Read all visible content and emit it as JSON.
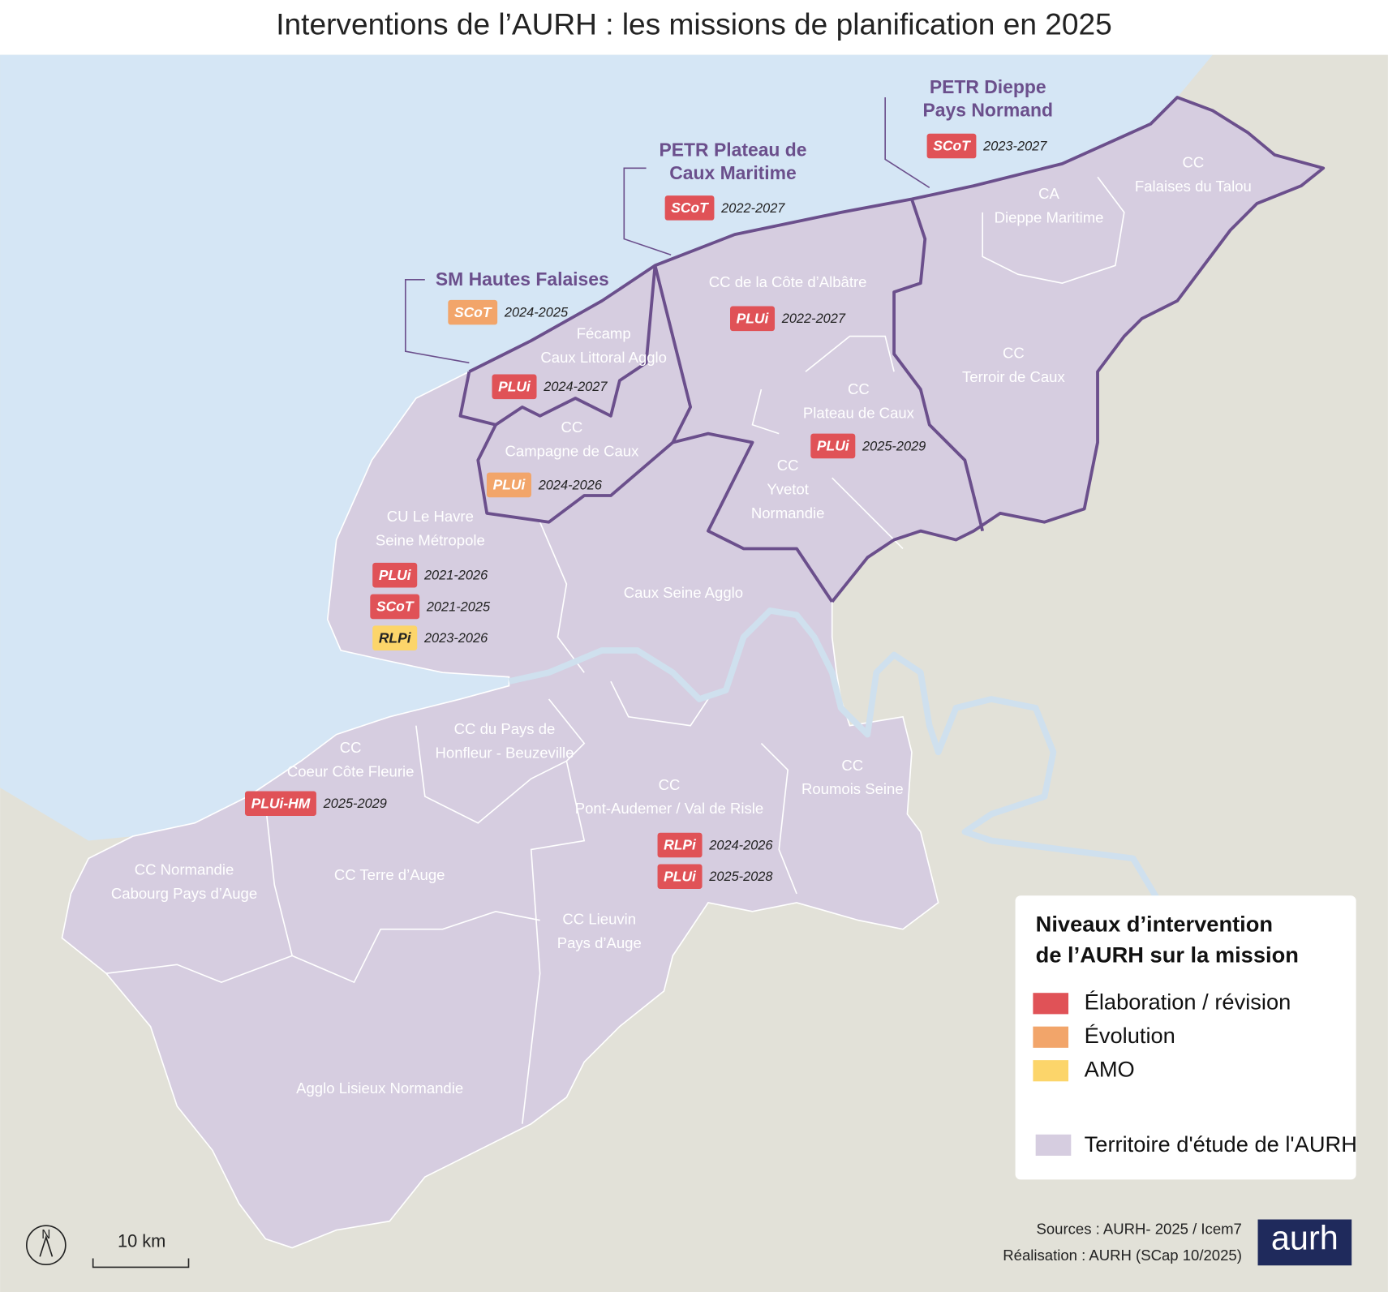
{
  "title": "Interventions de l’AURH : les missions de planification en 2025",
  "groupings": [
    {
      "name_lines": [
        "PETR Dieppe",
        "Pays Normand"
      ],
      "missions": [
        {
          "doc": "SCoT",
          "period": "2023-2027",
          "level": "Élaboration / révision"
        }
      ]
    },
    {
      "name_lines": [
        "PETR Plateau de",
        "Caux Maritime"
      ],
      "missions": [
        {
          "doc": "SCoT",
          "period": "2022-2027",
          "level": "Élaboration / révision"
        }
      ]
    },
    {
      "name_lines": [
        "SM Hautes Falaises"
      ],
      "missions": [
        {
          "doc": "SCoT",
          "period": "2024-2025",
          "level": "Évolution"
        }
      ]
    }
  ],
  "territories": [
    {
      "name_lines": [
        "CC",
        "Falaises du Talou"
      ],
      "missions": []
    },
    {
      "name_lines": [
        "CA",
        "Dieppe Maritime"
      ],
      "missions": []
    },
    {
      "name_lines": [
        "CC",
        "Terroir de Caux"
      ],
      "missions": []
    },
    {
      "name_lines": [
        "CC de la Côte d’Albâtre"
      ],
      "missions": [
        {
          "doc": "PLUi",
          "period": "2022-2027",
          "level": "Élaboration / révision"
        }
      ]
    },
    {
      "name_lines": [
        "Fécamp",
        "Caux Littoral Agglo"
      ],
      "missions": [
        {
          "doc": "PLUi",
          "period": "2024-2027",
          "level": "Élaboration / révision"
        }
      ]
    },
    {
      "name_lines": [
        "CC",
        "Plateau de Caux"
      ],
      "missions": [
        {
          "doc": "PLUi",
          "period": "2025-2029",
          "level": "Élaboration / révision"
        }
      ]
    },
    {
      "name_lines": [
        "CC",
        "Campagne de Caux"
      ],
      "missions": [
        {
          "doc": "PLUi",
          "period": "2024-2026",
          "level": "Évolution"
        }
      ]
    },
    {
      "name_lines": [
        "CC",
        "Yvetot",
        "Normandie"
      ],
      "missions": []
    },
    {
      "name_lines": [
        "CU Le Havre",
        "Seine Métropole"
      ],
      "missions": [
        {
          "doc": "PLUi",
          "period": "2021-2026",
          "level": "Élaboration / révision"
        },
        {
          "doc": "SCoT",
          "period": "2021-2025",
          "level": "Élaboration / révision"
        },
        {
          "doc": "RLPi",
          "period": "2023-2026",
          "level": "AMO"
        }
      ]
    },
    {
      "name_lines": [
        "Caux Seine Agglo"
      ],
      "missions": []
    },
    {
      "name_lines": [
        "CC du Pays de",
        "Honfleur - Beuzeville"
      ],
      "missions": []
    },
    {
      "name_lines": [
        "CC",
        "Coeur Côte Fleurie"
      ],
      "missions": [
        {
          "doc": "PLUi-HM",
          "period": "2025-2029",
          "level": "Élaboration / révision"
        }
      ]
    },
    {
      "name_lines": [
        "CC",
        "Pont-Audemer / Val de Risle"
      ],
      "missions": [
        {
          "doc": "RLPi",
          "period": "2024-2026",
          "level": "Élaboration / révision"
        },
        {
          "doc": "PLUi",
          "period": "2025-2028",
          "level": "Élaboration / révision"
        }
      ]
    },
    {
      "name_lines": [
        "CC",
        "Roumois Seine"
      ],
      "missions": []
    },
    {
      "name_lines": [
        "CC Normandie",
        "Cabourg Pays d’Auge"
      ],
      "missions": []
    },
    {
      "name_lines": [
        "CC Terre d’Auge"
      ],
      "missions": []
    },
    {
      "name_lines": [
        "CC Lieuvin",
        "Pays d’Auge"
      ],
      "missions": []
    },
    {
      "name_lines": [
        "Agglo Lisieux Normandie"
      ],
      "missions": []
    }
  ],
  "legend": {
    "title_lines": [
      "Niveaux d’intervention",
      "de l’AURH sur la mission"
    ],
    "items": [
      {
        "label": "Élaboration / révision",
        "color": "#e05257"
      },
      {
        "label": "Évolution",
        "color": "#f2a56a"
      },
      {
        "label": "AMO",
        "color": "#fcd56a"
      }
    ],
    "territory": {
      "label": "Territoire d'étude de l'AURH",
      "color": "#d6cde0"
    }
  },
  "north": "N",
  "scale": "10 km",
  "sources": [
    "Sources : AURH- 2025 / Icem7",
    "Réalisation : AURH (SCap 10/2025)"
  ],
  "logo": "aurh"
}
